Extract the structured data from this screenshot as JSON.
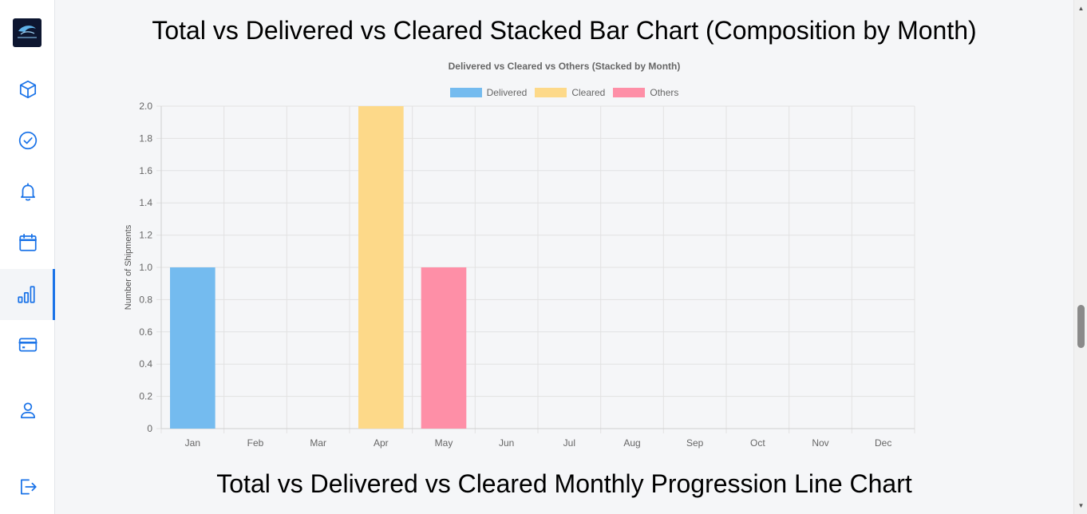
{
  "page": {
    "heading_stacked": "Total vs Delivered vs Cleared Stacked Bar Chart (Composition by Month)",
    "heading_line": "Total vs Delivered vs Cleared Monthly Progression Line Chart"
  },
  "sidebar": {
    "items": [
      {
        "icon": "cube-icon",
        "active": false
      },
      {
        "icon": "check-circle-icon",
        "active": false
      },
      {
        "icon": "bell-icon",
        "active": false
      },
      {
        "icon": "calendar-icon",
        "active": false
      },
      {
        "icon": "bar-chart-icon",
        "active": true
      },
      {
        "icon": "credit-card-icon",
        "active": false
      },
      {
        "icon": "user-icon",
        "active": false
      },
      {
        "icon": "logout-icon",
        "active": false
      }
    ]
  },
  "colors": {
    "accent": "#1a73e8",
    "delivered": "#74bbef",
    "cleared": "#fdd989",
    "others": "#fe8fa7"
  },
  "chart_data": {
    "type": "bar",
    "stacked": true,
    "title": "Delivered vs Cleared vs Others (Stacked by Month)",
    "xlabel": "",
    "ylabel": "Number of Shipments",
    "ylim": [
      0,
      2.0
    ],
    "yticks": [
      "0",
      "0.2",
      "0.4",
      "0.6",
      "0.8",
      "1.0",
      "1.2",
      "1.4",
      "1.6",
      "1.8",
      "2.0"
    ],
    "grid": true,
    "legend_position": "top",
    "categories": [
      "Jan",
      "Feb",
      "Mar",
      "Apr",
      "May",
      "Jun",
      "Jul",
      "Aug",
      "Sep",
      "Oct",
      "Nov",
      "Dec"
    ],
    "series": [
      {
        "name": "Delivered",
        "color": "#74bbef",
        "values": [
          1,
          0,
          0,
          0,
          0,
          0,
          0,
          0,
          0,
          0,
          0,
          0
        ]
      },
      {
        "name": "Cleared",
        "color": "#fdd989",
        "values": [
          0,
          0,
          0,
          2,
          0,
          0,
          0,
          0,
          0,
          0,
          0,
          0
        ]
      },
      {
        "name": "Others",
        "color": "#fe8fa7",
        "values": [
          0,
          0,
          0,
          0,
          1,
          0,
          0,
          0,
          0,
          0,
          0,
          0
        ]
      }
    ]
  }
}
